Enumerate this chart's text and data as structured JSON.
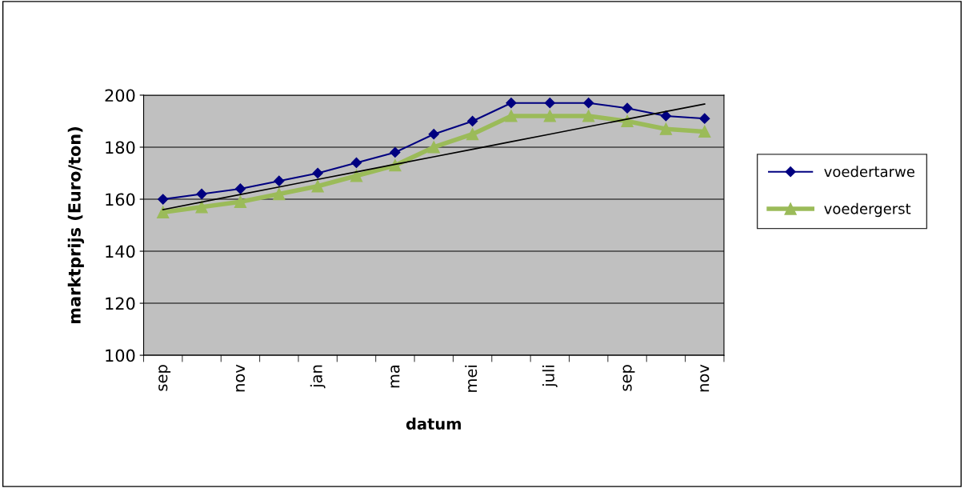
{
  "chart_data": {
    "type": "line",
    "xlabel": "datum",
    "ylabel": "marktprijs (Euro/ton)",
    "categories": [
      "sep",
      null,
      "nov",
      null,
      "jan",
      null,
      "ma",
      null,
      "mei",
      null,
      "juli",
      null,
      "sep",
      null,
      "nov"
    ],
    "series": [
      {
        "name": "voedertarwe",
        "color": "#000080",
        "marker": "diamond",
        "values": [
          160,
          162,
          164,
          167,
          170,
          174,
          178,
          185,
          190,
          197,
          197,
          197,
          195,
          192,
          191
        ]
      },
      {
        "name": "voedergerst",
        "color": "#9bbb59",
        "marker": "triangle",
        "values": [
          155,
          157,
          159,
          162,
          165,
          169,
          173,
          180,
          185,
          192,
          192,
          192,
          190,
          187,
          186
        ]
      },
      {
        "color": "#000000",
        "marker": "none",
        "values": [
          156,
          158.9,
          161.8,
          164.7,
          167.6,
          170.5,
          173.4,
          176.3,
          179.2,
          182.1,
          185,
          187.9,
          190.8,
          193.7,
          196.6
        ]
      }
    ],
    "ylim": [
      100,
      200
    ],
    "yticks": [
      100,
      120,
      140,
      160,
      180,
      200
    ],
    "grid": "y",
    "legend": "right"
  }
}
